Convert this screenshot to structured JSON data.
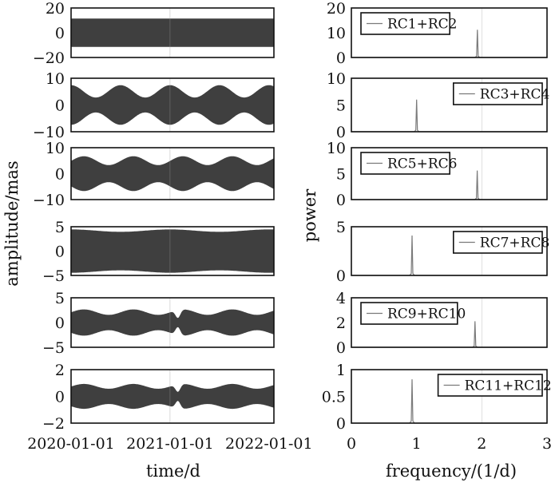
{
  "chart_data": [
    {
      "type": "area",
      "layout_group": "time",
      "series_name": "RC1+RC2",
      "y_ticks": [
        "20",
        "0",
        "−20"
      ],
      "ylim": [
        -20,
        20
      ],
      "envelope": {
        "base": 11.5,
        "mod": 0,
        "dip_at": null,
        "dip_depth": 0
      }
    },
    {
      "type": "area",
      "layout_group": "time",
      "series_name": "RC3+RC4",
      "y_ticks": [
        "10",
        "0",
        "−10"
      ],
      "ylim": [
        -10,
        10
      ],
      "envelope": {
        "base": 5.1,
        "mod": 2.3,
        "period_years": 0.5,
        "phase_years": 0.0,
        "dip_at": null,
        "dip_depth": 0
      }
    },
    {
      "type": "area",
      "layout_group": "time",
      "series_name": "RC5+RC6",
      "y_ticks": [
        "10",
        "0",
        "−10"
      ],
      "ylim": [
        -10,
        10
      ],
      "envelope": {
        "base": 5.0,
        "mod": 1.7,
        "period_years": 0.5,
        "phase_years": 0.13,
        "dip_at": null,
        "dip_depth": 0
      }
    },
    {
      "type": "area",
      "layout_group": "time",
      "series_name": "RC7+RC8",
      "y_ticks": [
        "5",
        "0",
        "−5"
      ],
      "ylim": [
        -5,
        5
      ],
      "envelope": {
        "base": 4.2,
        "mod": 0.25,
        "period_years": 1.0,
        "phase_years": 0.0,
        "dip_at": null,
        "dip_depth": 0
      }
    },
    {
      "type": "area",
      "layout_group": "time",
      "series_name": "RC9+RC10",
      "y_ticks": [
        "5",
        "0",
        "−5"
      ],
      "ylim": [
        -5,
        5
      ],
      "envelope": {
        "base": 2.1,
        "mod": 0.55,
        "period_years": 0.5,
        "phase_years": 0.13,
        "dip_at": 1.08,
        "dip_depth": 1.6
      }
    },
    {
      "type": "area",
      "layout_group": "time",
      "series_name": "RC11+RC12",
      "y_ticks": [
        "2",
        "0",
        "−2"
      ],
      "ylim": [
        -2,
        2
      ],
      "envelope": {
        "base": 0.75,
        "mod": 0.18,
        "period_years": 0.5,
        "phase_years": 0.13,
        "dip_at": 1.08,
        "dip_depth": 0.55
      }
    }
  ],
  "spectra": [
    {
      "legend": "RC1+RC2",
      "y_ticks": [
        "20",
        "10",
        "0"
      ],
      "ylim": [
        0,
        20
      ],
      "peak_freq": 1.932,
      "peak_power": 11.2
    },
    {
      "legend": "RC3+RC4",
      "y_ticks": [
        "10",
        "5",
        "0"
      ],
      "ylim": [
        0,
        10
      ],
      "peak_freq": 1.0,
      "peak_power": 6.0
    },
    {
      "legend": "RC5+RC6",
      "y_ticks": [
        "10",
        "5",
        "0"
      ],
      "ylim": [
        0,
        10
      ],
      "peak_freq": 1.93,
      "peak_power": 5.6
    },
    {
      "legend": "RC7+RC8",
      "y_ticks": [
        "5",
        "0"
      ],
      "ylim": [
        0,
        5
      ],
      "peak_freq": 0.93,
      "peak_power": 4.1
    },
    {
      "legend": "RC9+RC10",
      "y_ticks": [
        "4",
        "2",
        "0"
      ],
      "ylim": [
        0,
        4
      ],
      "peak_freq": 1.895,
      "peak_power": 2.1
    },
    {
      "legend": "RC11+RC12",
      "y_ticks": [
        "1",
        "0.5",
        "0"
      ],
      "ylim": [
        0,
        1
      ],
      "peak_freq": 0.93,
      "peak_power": 0.82
    }
  ],
  "time_axis": {
    "xlabel": "time/d",
    "ticks": [
      "2020-01-01",
      "2021-01-01",
      "2022-01-01"
    ],
    "xlim_years": [
      0,
      2.05
    ]
  },
  "freq_axis": {
    "xlabel": "frequency/(1/d)",
    "ticks": [
      "0",
      "1",
      "2",
      "3"
    ],
    "xlim": [
      0,
      3
    ]
  },
  "ylabel_left": "amplitude/mas",
  "ylabel_right": "power",
  "colors": {
    "fill": "#3f3f3f",
    "line": "#7a7a7a",
    "axis": "#111111",
    "grid": "#9a9a9a"
  }
}
